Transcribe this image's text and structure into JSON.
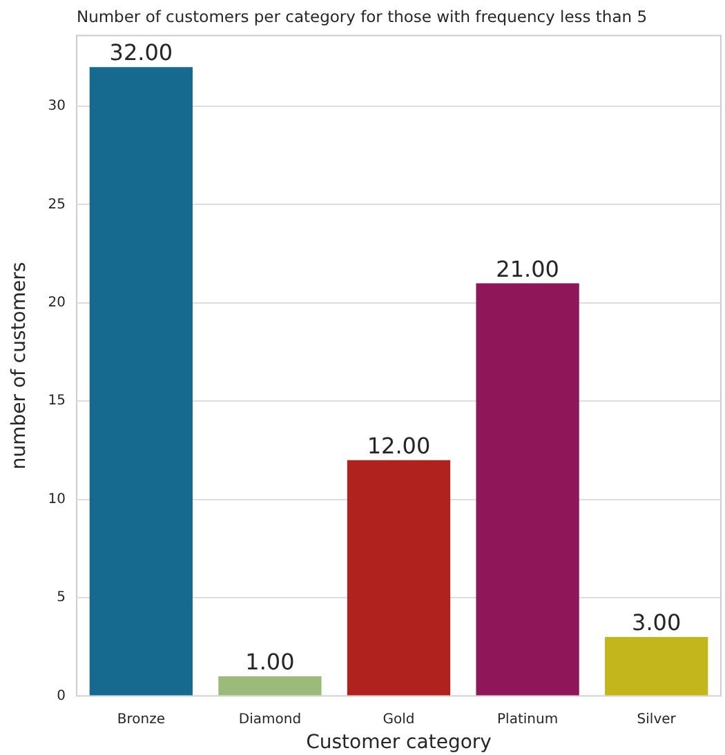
{
  "chart_data": {
    "type": "bar",
    "title": "Number of customers per category for those with frequency less than 5",
    "xlabel": "Customer category",
    "ylabel": "number of customers",
    "categories": [
      "Bronze",
      "Diamond",
      "Gold",
      "Platinum",
      "Silver"
    ],
    "values": [
      32,
      1,
      12,
      21,
      3
    ],
    "value_labels": [
      "32.00",
      "1.00",
      "12.00",
      "21.00",
      "3.00"
    ],
    "colors": [
      "#166a8f",
      "#9bbb7a",
      "#b0221d",
      "#8e1659",
      "#c3b51c"
    ],
    "ylim": [
      0,
      33.6
    ],
    "yticks": [
      0,
      5,
      10,
      15,
      20,
      25,
      30
    ],
    "grid": "y",
    "legend": false
  }
}
